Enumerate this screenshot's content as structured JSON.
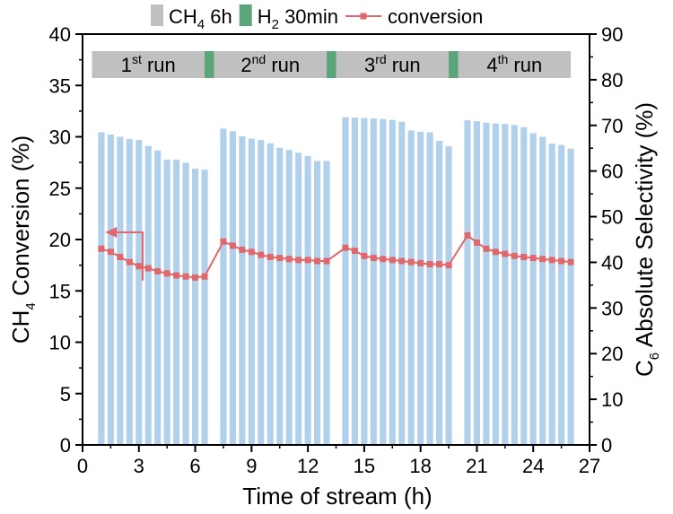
{
  "chart_data": {
    "type": "bar+line",
    "xlabel": "Time of stream (h)",
    "ylabel_left": {
      "prefix": "CH",
      "sub": "4",
      "suffix": " Conversion (%)"
    },
    "ylabel_right": {
      "prefix": "C",
      "sub": "6",
      "suffix": " Absolute Selectivity (%)"
    },
    "xlim": [
      0,
      27
    ],
    "ylim_left": [
      0,
      40
    ],
    "ylim_right": [
      0,
      90
    ],
    "x_ticks": [
      0,
      3,
      6,
      9,
      12,
      15,
      18,
      21,
      24,
      27
    ],
    "y_ticks_left": [
      0,
      5,
      10,
      15,
      20,
      25,
      30,
      35,
      40
    ],
    "y_ticks_right": [
      0,
      10,
      20,
      30,
      40,
      50,
      60,
      70,
      80,
      90
    ],
    "legend": [
      {
        "key": "ch4",
        "label_prefix": "CH",
        "label_sub": "4",
        "label_suffix": " 6h",
        "color": "#c0c0c0",
        "kind": "box"
      },
      {
        "key": "h2",
        "label_prefix": "H",
        "label_sub": "2",
        "label_suffix": " 30min",
        "color": "#5aa67a",
        "kind": "box"
      },
      {
        "key": "conv",
        "label_prefix": "conversion",
        "label_sub": "",
        "label_suffix": "",
        "color": "#e0676b",
        "kind": "line"
      }
    ],
    "runs": [
      {
        "label": "1",
        "sup": "st",
        "suffix": " run",
        "start": 0.5,
        "end": 6.5
      },
      {
        "label": "2",
        "sup": "nd",
        "suffix": " run",
        "start": 7.0,
        "end": 13.0
      },
      {
        "label": "3",
        "sup": "rd",
        "suffix": " run",
        "start": 13.5,
        "end": 19.5
      },
      {
        "label": "4",
        "sup": "th",
        "suffix": " run",
        "start": 20.0,
        "end": 26.0
      }
    ],
    "h2_segments": [
      {
        "start": 6.5,
        "end": 7.0
      },
      {
        "start": 13.0,
        "end": 13.5
      },
      {
        "start": 19.5,
        "end": 20.0
      }
    ],
    "colors": {
      "bar": "#b1d0ec",
      "ch4_run": "#c0c0c0",
      "h2": "#5aa67a",
      "conversion": "#e0676b",
      "arrow": "#e0676b"
    },
    "series": [
      {
        "name": "C6 Absolute Selectivity",
        "axis": "right",
        "kind": "bar",
        "x": [
          1.0,
          1.5,
          2.0,
          2.5,
          3.0,
          3.5,
          4.0,
          4.5,
          5.0,
          5.5,
          6.0,
          6.5,
          7.5,
          8.0,
          8.5,
          9.0,
          9.5,
          10.0,
          10.5,
          11.0,
          11.5,
          12.0,
          12.5,
          13.0,
          14.0,
          14.5,
          15.0,
          15.5,
          16.0,
          16.5,
          17.0,
          17.5,
          18.0,
          18.5,
          19.0,
          19.5,
          20.5,
          21.0,
          21.5,
          22.0,
          22.5,
          23.0,
          23.5,
          24.0,
          24.5,
          25.0,
          25.5,
          26.0
        ],
        "values": [
          68.5,
          68.0,
          67.5,
          67.0,
          66.8,
          65.5,
          64.5,
          62.5,
          62.5,
          61.8,
          60.5,
          60.3,
          69.3,
          68.7,
          67.6,
          67.1,
          66.8,
          66.1,
          65.1,
          64.6,
          64.0,
          63.3,
          62.2,
          62.2,
          71.8,
          71.7,
          71.6,
          71.5,
          71.4,
          71.2,
          70.8,
          68.9,
          68.6,
          68.5,
          66.6,
          65.4,
          71.1,
          70.9,
          70.6,
          70.4,
          70.3,
          70.1,
          69.6,
          68.3,
          67.5,
          66.0,
          65.7,
          64.9
        ]
      },
      {
        "name": "conversion",
        "axis": "left",
        "kind": "line",
        "x": [
          1.0,
          1.5,
          2.0,
          2.5,
          3.0,
          3.5,
          4.0,
          4.5,
          5.0,
          5.5,
          6.0,
          6.5,
          7.5,
          8.0,
          8.5,
          9.0,
          9.5,
          10.0,
          10.5,
          11.0,
          11.5,
          12.0,
          12.5,
          13.0,
          14.0,
          14.5,
          15.0,
          15.5,
          16.0,
          16.5,
          17.0,
          17.5,
          18.0,
          18.5,
          19.0,
          19.5,
          20.5,
          21.0,
          21.5,
          22.0,
          22.5,
          23.0,
          23.5,
          24.0,
          24.5,
          25.0,
          25.5,
          26.0
        ],
        "values": [
          19.1,
          18.8,
          18.3,
          17.8,
          17.4,
          17.2,
          16.9,
          16.7,
          16.5,
          16.4,
          16.3,
          16.4,
          19.8,
          19.4,
          19.0,
          18.8,
          18.5,
          18.3,
          18.2,
          18.1,
          18.0,
          18.0,
          17.9,
          17.9,
          19.2,
          18.9,
          18.4,
          18.2,
          18.1,
          18.0,
          17.9,
          17.8,
          17.7,
          17.6,
          17.6,
          17.5,
          20.4,
          19.7,
          19.1,
          18.8,
          18.6,
          18.4,
          18.3,
          18.2,
          18.1,
          18.0,
          17.9,
          17.8
        ]
      }
    ],
    "annotation": {
      "type": "arrow-left",
      "from_x": 3.2,
      "from_y": 16.0,
      "corner_y": 20.7,
      "to_x": 1.2
    }
  }
}
